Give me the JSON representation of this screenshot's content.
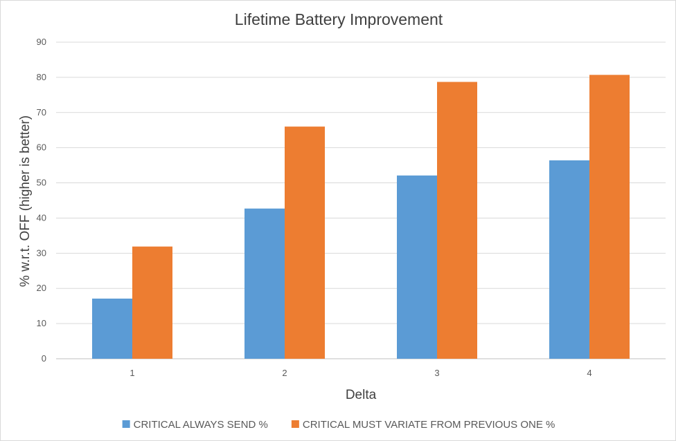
{
  "chart_data": {
    "type": "bar",
    "title": "Lifetime Battery Improvement",
    "xlabel": "Delta",
    "ylabel": "% w.r.t. OFF (higher is better)",
    "categories": [
      "1",
      "2",
      "3",
      "4"
    ],
    "ylim": [
      0,
      90
    ],
    "yticks": [
      "0",
      "10",
      "20",
      "30",
      "40",
      "50",
      "60",
      "70",
      "80",
      "90"
    ],
    "grid": true,
    "legend": "bottom",
    "series": [
      {
        "name": "CRITICAL ALWAYS SEND %",
        "color": "#5b9bd5",
        "values": [
          17.1,
          42.7,
          52.1,
          56.4
        ]
      },
      {
        "name": "CRITICAL MUST VARIATE FROM PREVIOUS ONE %",
        "color": "#ed7d31",
        "values": [
          31.9,
          66.0,
          78.7,
          80.7
        ]
      }
    ]
  }
}
